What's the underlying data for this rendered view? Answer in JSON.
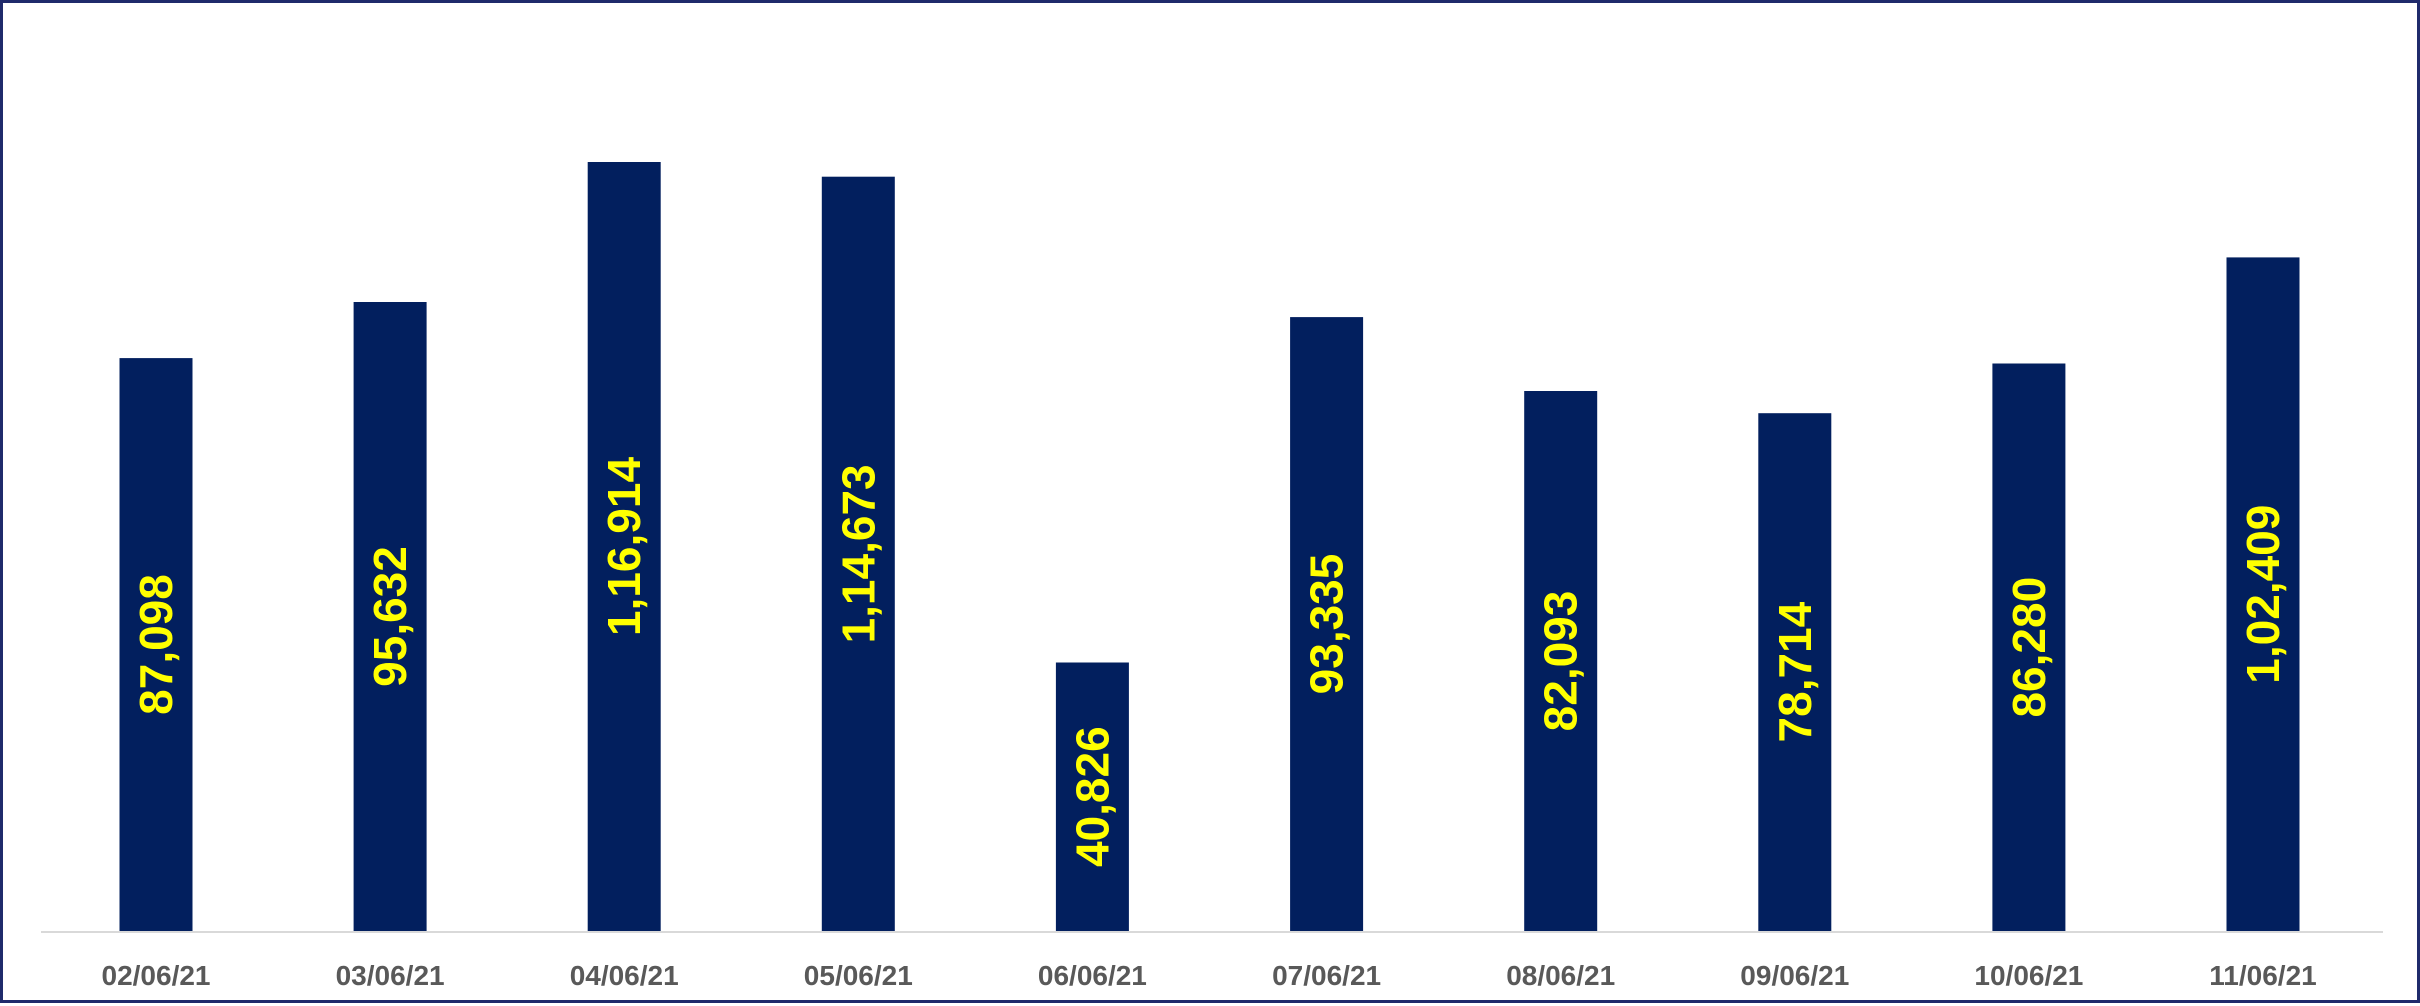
{
  "chart_data": {
    "type": "bar",
    "title": "",
    "xlabel": "",
    "ylabel": "",
    "categories": [
      "02/06/21",
      "03/06/21",
      "04/06/21",
      "05/06/21",
      "06/06/21",
      "07/06/21",
      "08/06/21",
      "09/06/21",
      "10/06/21",
      "11/06/21"
    ],
    "values": [
      87098,
      95632,
      116914,
      114673,
      40826,
      93335,
      82093,
      78714,
      86280,
      102409
    ],
    "data_labels": [
      "87,098",
      "95,632",
      "1,16,914",
      "1,14,673",
      "40,826",
      "93,335",
      "82,093",
      "78,714",
      "86,280",
      "1,02,409"
    ],
    "ylim": [
      0,
      135000
    ],
    "grid": false,
    "legend": "none"
  },
  "colors": {
    "bar": "#021f5e",
    "data_label": "#ffff00",
    "tick_label": "#595959",
    "axis_line": "#d9d9d9",
    "frame_border": "#1f2a6b"
  }
}
